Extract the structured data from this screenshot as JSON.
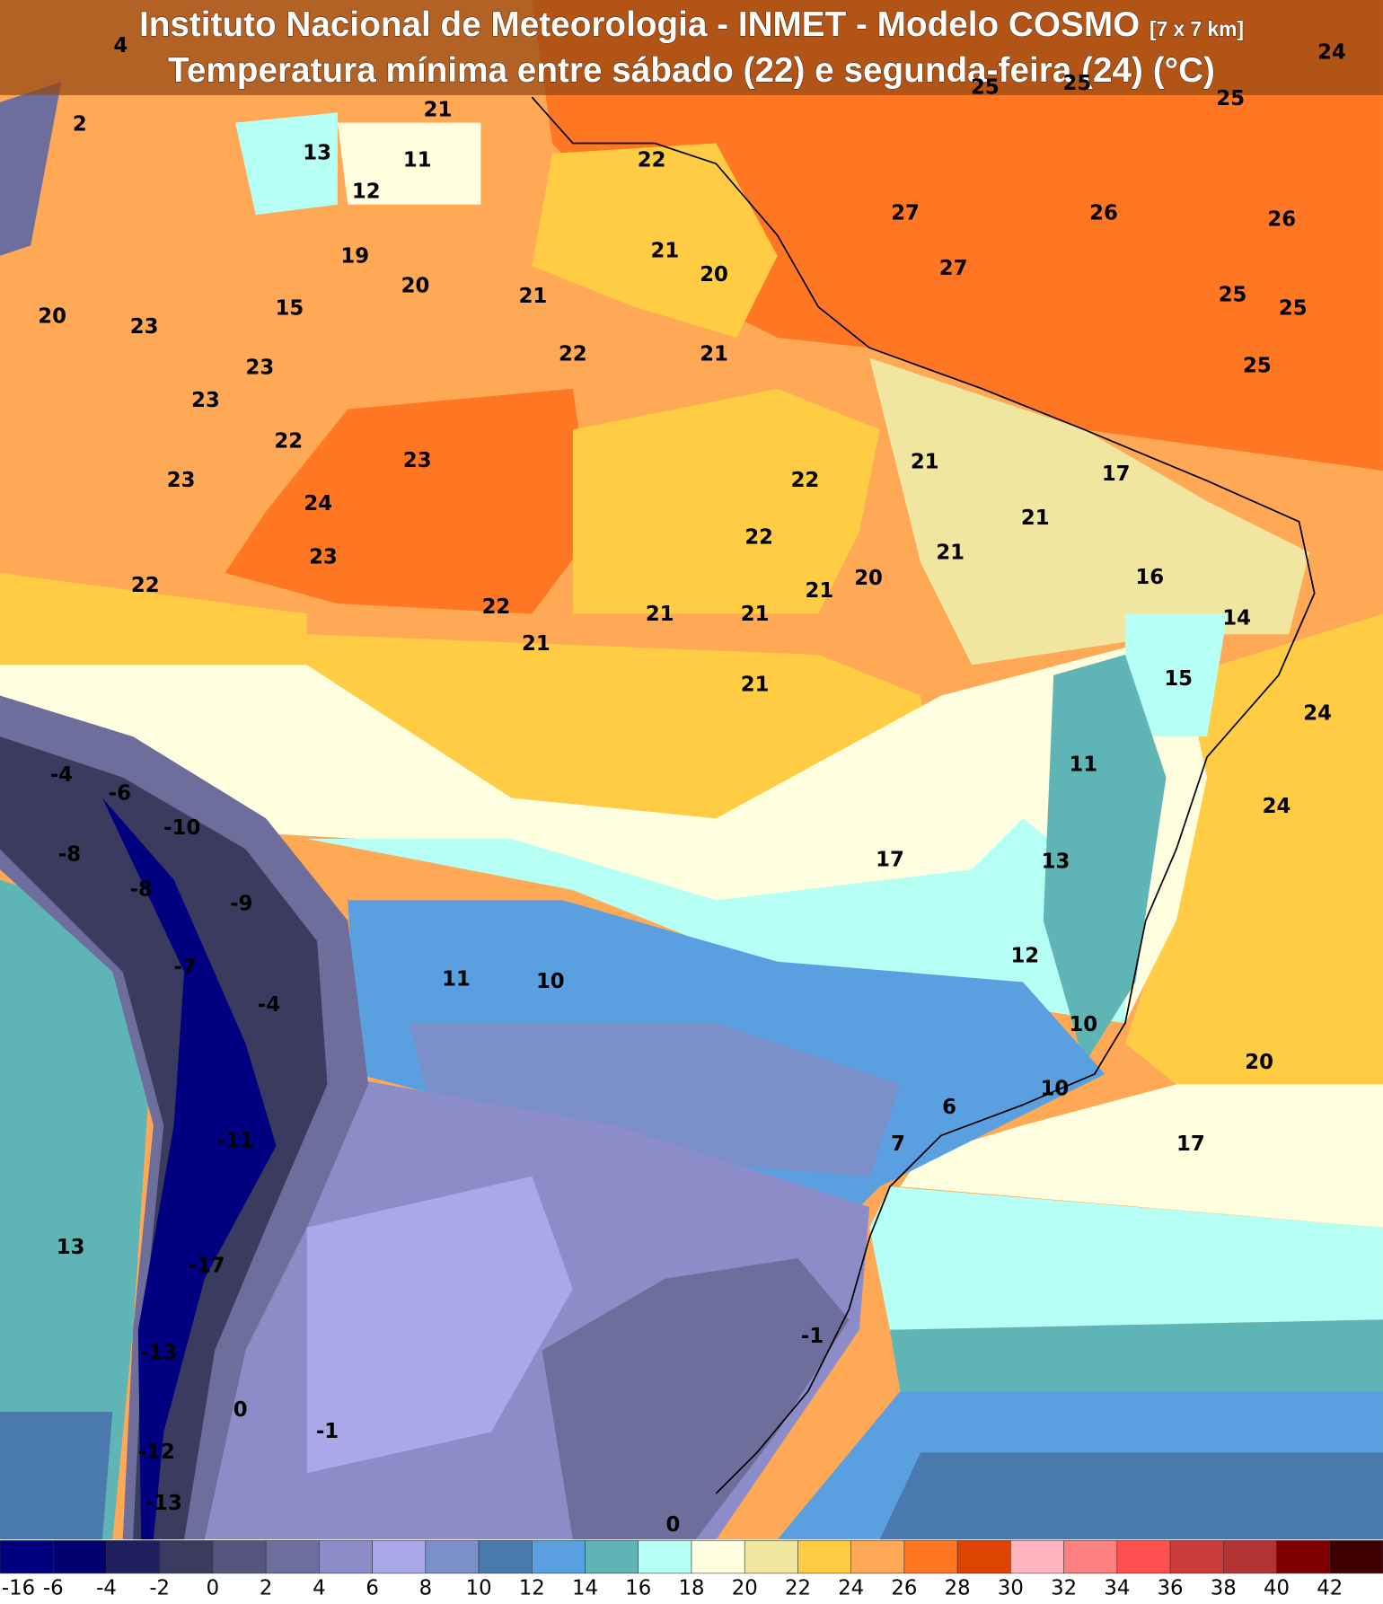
{
  "header": {
    "title": "Instituto Nacional de Meteorologia - INMET - Modelo COSMO",
    "resolution": "[7 x 7 km]",
    "subtitle": "Temperatura mínima entre sábado (22) e segunda-feira (24) (°C)"
  },
  "map_labels": [
    4,
    21,
    25,
    25,
    24,
    25,
    2,
    13,
    11,
    12,
    22,
    27,
    26,
    26,
    21,
    20,
    27,
    19,
    20,
    21,
    25,
    25,
    20,
    23,
    15,
    22,
    21,
    25,
    23,
    23,
    22,
    23,
    21,
    17,
    23,
    24,
    22,
    21,
    22,
    21,
    23,
    20,
    16,
    22,
    22,
    21,
    21,
    21,
    14,
    21,
    21,
    15,
    24,
    -4,
    -6,
    11,
    -10,
    24,
    -8,
    -8,
    17,
    13,
    -9,
    12,
    -7,
    11,
    10,
    -4,
    10,
    20,
    6,
    10,
    7,
    17,
    -11,
    13,
    -17,
    -1,
    -13,
    0,
    -1,
    -12,
    -13,
    0
  ],
  "colorbar": {
    "colors": [
      "#000080",
      "#000070",
      "#1f1f5f",
      "#3b3b5f",
      "#55557f",
      "#6e6e9c",
      "#8c8cc8",
      "#aaa8e8",
      "#7b8fc8",
      "#4a7aad",
      "#5aa0e0",
      "#5fb5b5",
      "#b5fff5",
      "#ffffe0",
      "#f0e6a0",
      "#ffcc44",
      "#ffa855",
      "#ff7722",
      "#dd4400",
      "#ffb6c1",
      "#ff8080",
      "#ff4f4f",
      "#cc3b3b",
      "#b33333",
      "#800000",
      "#3f0000"
    ],
    "ticks": [
      -16,
      -6,
      -4,
      -2,
      0,
      2,
      4,
      6,
      8,
      10,
      12,
      14,
      16,
      18,
      20,
      22,
      24,
      26,
      28,
      30,
      32,
      34,
      36,
      38,
      40,
      42
    ]
  }
}
